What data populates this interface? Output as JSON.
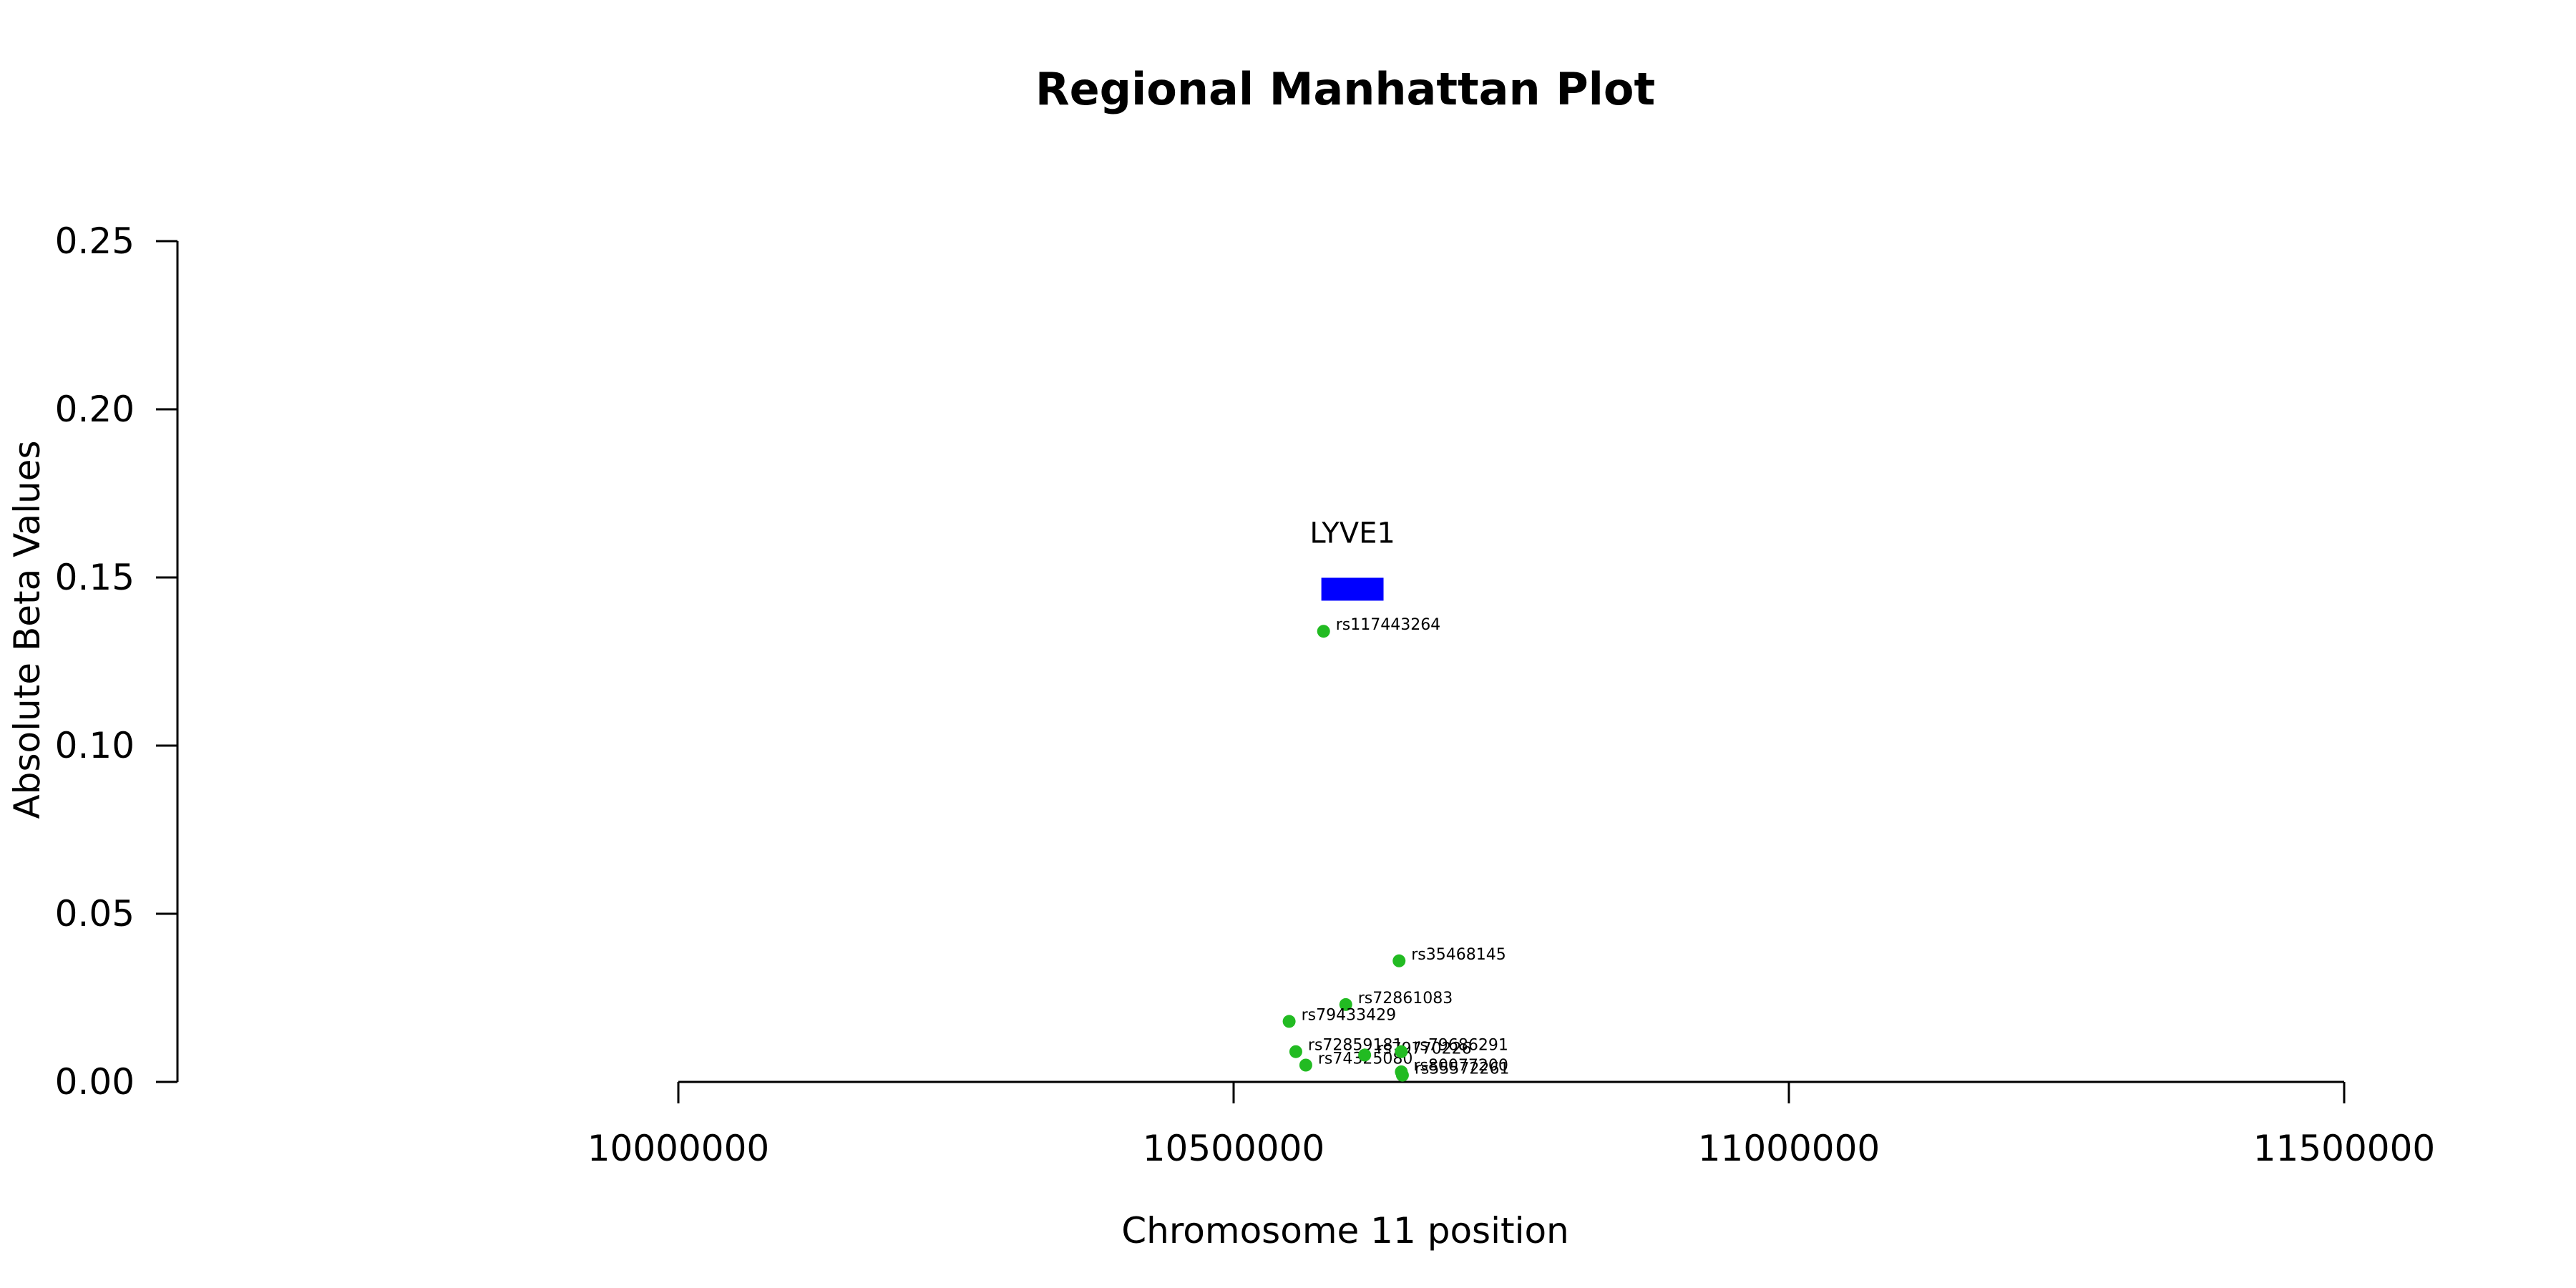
{
  "chart_data": {
    "type": "scatter",
    "title": "Regional Manhattan Plot",
    "xlabel": "Chromosome 11 position",
    "ylabel": "Absolute Beta Values",
    "xlim": [
      9550000,
      11650000
    ],
    "ylim": [
      0,
      0.25
    ],
    "x_ticks": [
      10000000,
      10500000,
      11000000,
      11500000
    ],
    "y_ticks": [
      "0.00",
      "0.05",
      "0.10",
      "0.15",
      "0.20",
      "0.25"
    ],
    "point_color": "#22bb22",
    "points": [
      {
        "label": "rs117443264",
        "x": 10581000,
        "y": 0.134
      },
      {
        "label": "rs35468145",
        "x": 10649000,
        "y": 0.036
      },
      {
        "label": "rs72861083",
        "x": 10601000,
        "y": 0.023
      },
      {
        "label": "rs79433429",
        "x": 10550000,
        "y": 0.018
      },
      {
        "label": "rs72859181",
        "x": 10556000,
        "y": 0.009
      },
      {
        "label": "rs74325080",
        "x": 10565000,
        "y": 0.005
      },
      {
        "label": "rs79770226",
        "x": 10618000,
        "y": 0.008
      },
      {
        "label": "rs79686291",
        "x": 10651000,
        "y": 0.009
      },
      {
        "label": "rs80077200",
        "x": 10651000,
        "y": 0.003
      },
      {
        "label": "rs55572261",
        "x": 10652000,
        "y": 0.002
      }
    ],
    "genes": [
      {
        "name": "LYVE1",
        "start": 10579000,
        "end": 10635000,
        "y": 0.1465,
        "color": "#0000ff"
      }
    ]
  }
}
